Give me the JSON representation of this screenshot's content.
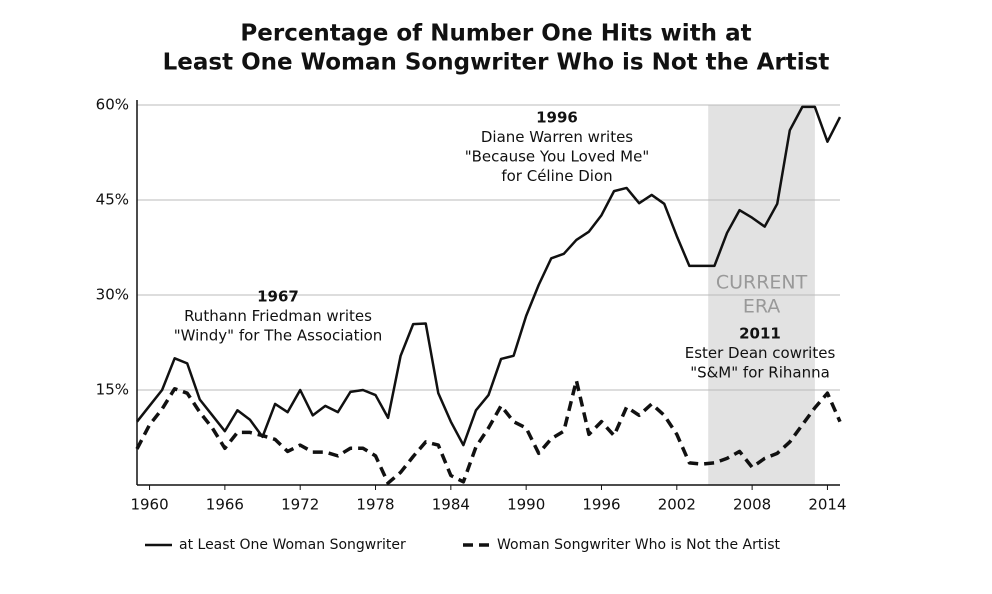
{
  "chart_data": {
    "type": "line",
    "title": [
      "Percentage of Number One Hits with at",
      "Least One Woman Songwriter Who is Not the Artist"
    ],
    "x": [
      1959,
      1960,
      1961,
      1962,
      1963,
      1964,
      1965,
      1966,
      1967,
      1968,
      1969,
      1970,
      1971,
      1972,
      1973,
      1974,
      1975,
      1976,
      1977,
      1978,
      1979,
      1980,
      1981,
      1982,
      1983,
      1984,
      1985,
      1986,
      1987,
      1988,
      1989,
      1990,
      1991,
      1992,
      1993,
      1994,
      1995,
      1996,
      1997,
      1998,
      1999,
      2000,
      2001,
      2002,
      2003,
      2004,
      2005,
      2006,
      2007,
      2008,
      2009,
      2010,
      2011,
      2012,
      2013,
      2014,
      2015
    ],
    "series": [
      {
        "name": "at Least One Woman Songwriter",
        "color": "#111111",
        "dash": false,
        "values": [
          10,
          12.5,
          15,
          20,
          19.2,
          13.5,
          11,
          8.5,
          11.8,
          10.3,
          7.6,
          12.8,
          11.5,
          15,
          11,
          12.5,
          11.5,
          14.7,
          15,
          14.2,
          10.6,
          20.4,
          25.4,
          25.5,
          14.5,
          10,
          6.3,
          11.8,
          14.2,
          19.9,
          20.4,
          26.7,
          31.6,
          35.8,
          36.5,
          38.7,
          40,
          42.6,
          46.4,
          46.9,
          44.5,
          45.8,
          44.4,
          39.3,
          34.6,
          34.6,
          34.6,
          39.8,
          43.4,
          42.2,
          40.8,
          44.4,
          56,
          59.7,
          59.7,
          54.2,
          58.1
        ]
      },
      {
        "name": "Woman Songwriter Who is Not the Artist",
        "color": "#111111",
        "dash": true,
        "values": [
          5.7,
          9.5,
          12,
          15.2,
          14.5,
          11.5,
          9,
          5.8,
          8.3,
          8.3,
          7.8,
          7.2,
          5.3,
          6.3,
          5.2,
          5.2,
          4.6,
          5.8,
          5.8,
          4.6,
          0.3,
          2,
          4.5,
          6.8,
          6.3,
          1.5,
          0.5,
          6,
          9,
          12.5,
          10,
          9,
          5,
          7.3,
          8.5,
          16.5,
          8,
          10,
          7.8,
          12.3,
          11,
          12.8,
          11,
          8,
          3.5,
          3.3,
          3.5,
          4.2,
          5.3,
          2.8,
          4.2,
          5,
          6.8,
          9.5,
          12.2,
          14.5,
          10
        ]
      }
    ],
    "xlim": [
      1959,
      2015
    ],
    "xticks": [
      1960,
      1966,
      1972,
      1978,
      1984,
      1990,
      1996,
      2002,
      2008,
      2014
    ],
    "ylim": [
      0,
      60
    ],
    "yticks": [
      {
        "value": 15,
        "label": "15%"
      },
      {
        "value": 30,
        "label": "30%"
      },
      {
        "value": 45,
        "label": "45%"
      },
      {
        "value": 60,
        "label": "60%"
      }
    ],
    "grid": true,
    "shaded_region": {
      "range": [
        2004.5,
        2013
      ],
      "color": "#e2e2e2",
      "label": [
        "CURRENT",
        "ERA"
      ]
    },
    "annotations": [
      {
        "lines": [
          "1967",
          "Ruthann Friedman writes",
          "\"Windy\" for The Association"
        ]
      },
      {
        "lines": [
          "1996",
          "Diane Warren writes",
          "\"Because You Loved Me\"",
          "for Céline Dion"
        ]
      },
      {
        "lines": [
          "2011",
          "Ester Dean cowrites",
          "\"S&M\" for Rihanna"
        ]
      }
    ],
    "legend": "bottom"
  }
}
